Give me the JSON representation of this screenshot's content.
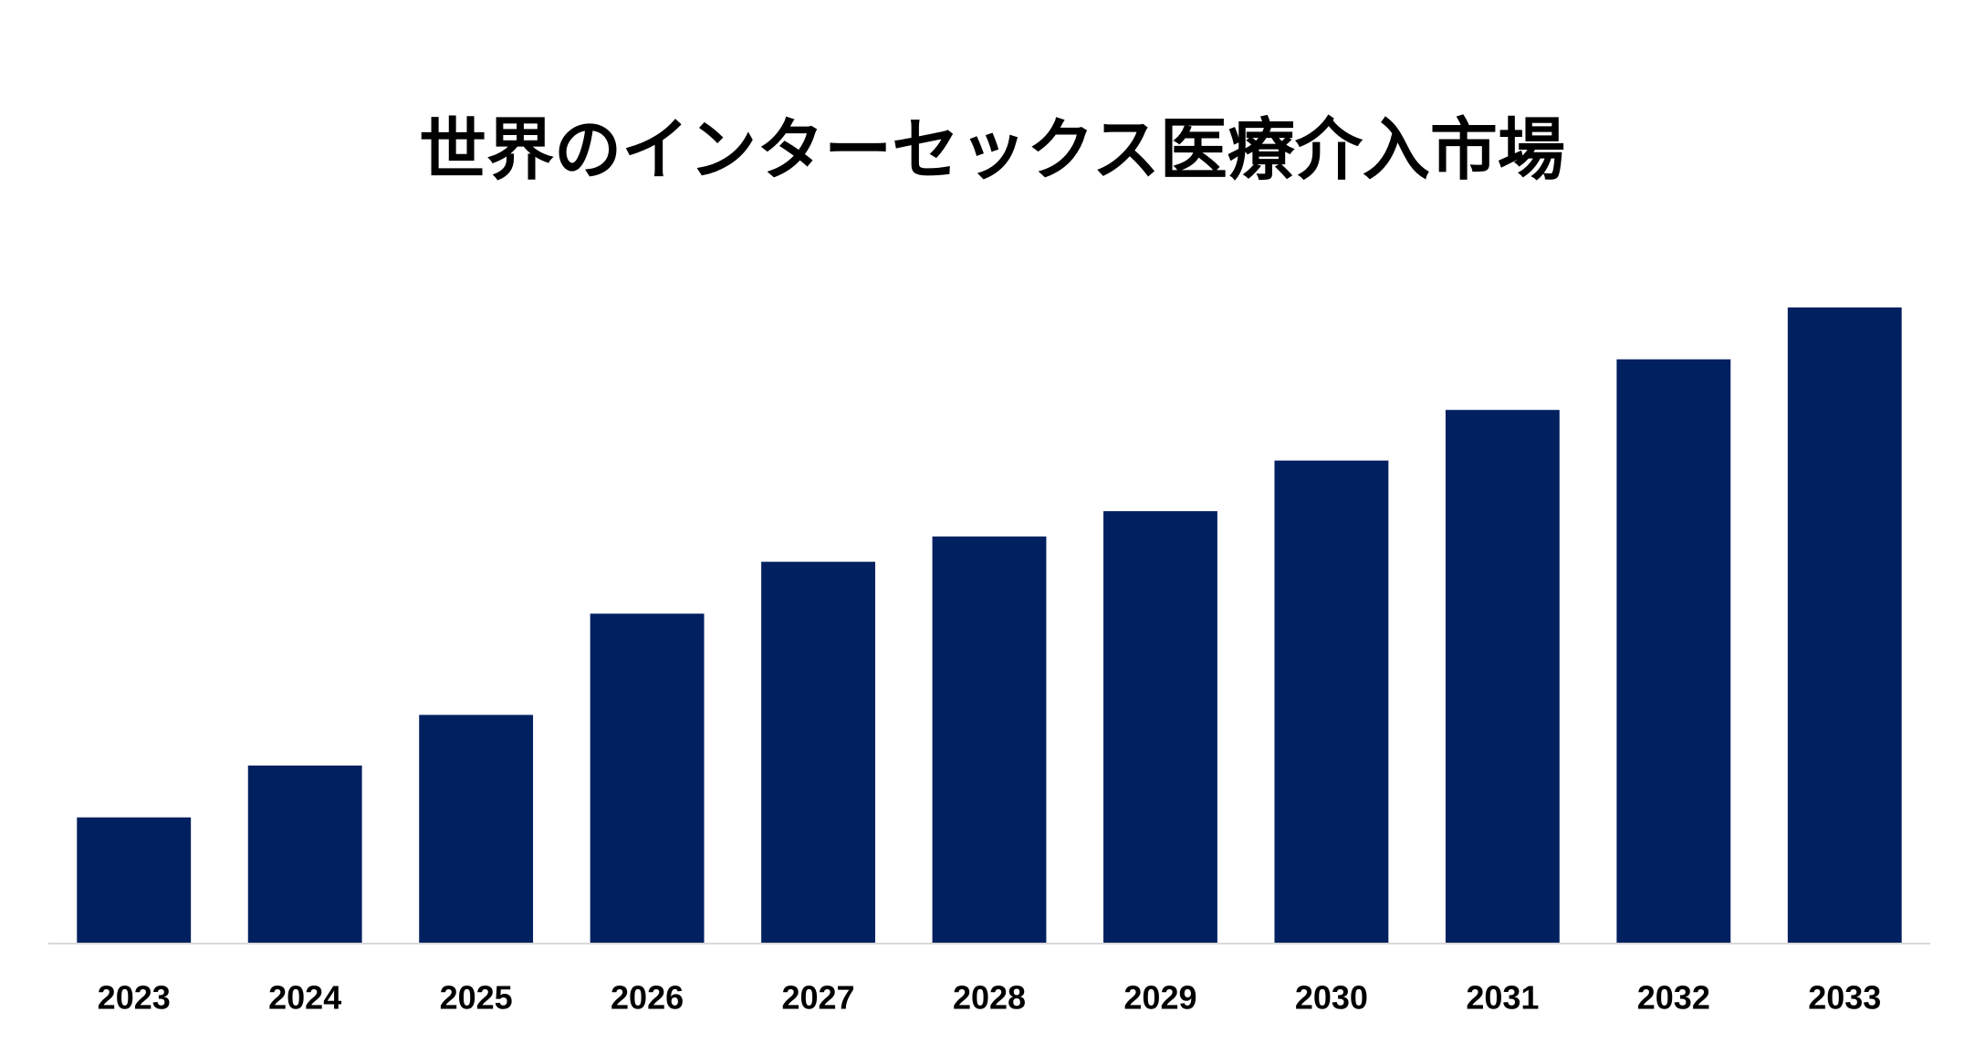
{
  "chart_data": {
    "type": "bar",
    "title": "世界のインターセックス医療介入市場",
    "categories": [
      "2023",
      "2024",
      "2025",
      "2026",
      "2027",
      "2028",
      "2029",
      "2030",
      "2031",
      "2032",
      "2033"
    ],
    "values": [
      99,
      140,
      180,
      260,
      301,
      321,
      341,
      381,
      421,
      461,
      502
    ],
    "color": "#002060",
    "ylim": [
      0,
      600
    ]
  }
}
